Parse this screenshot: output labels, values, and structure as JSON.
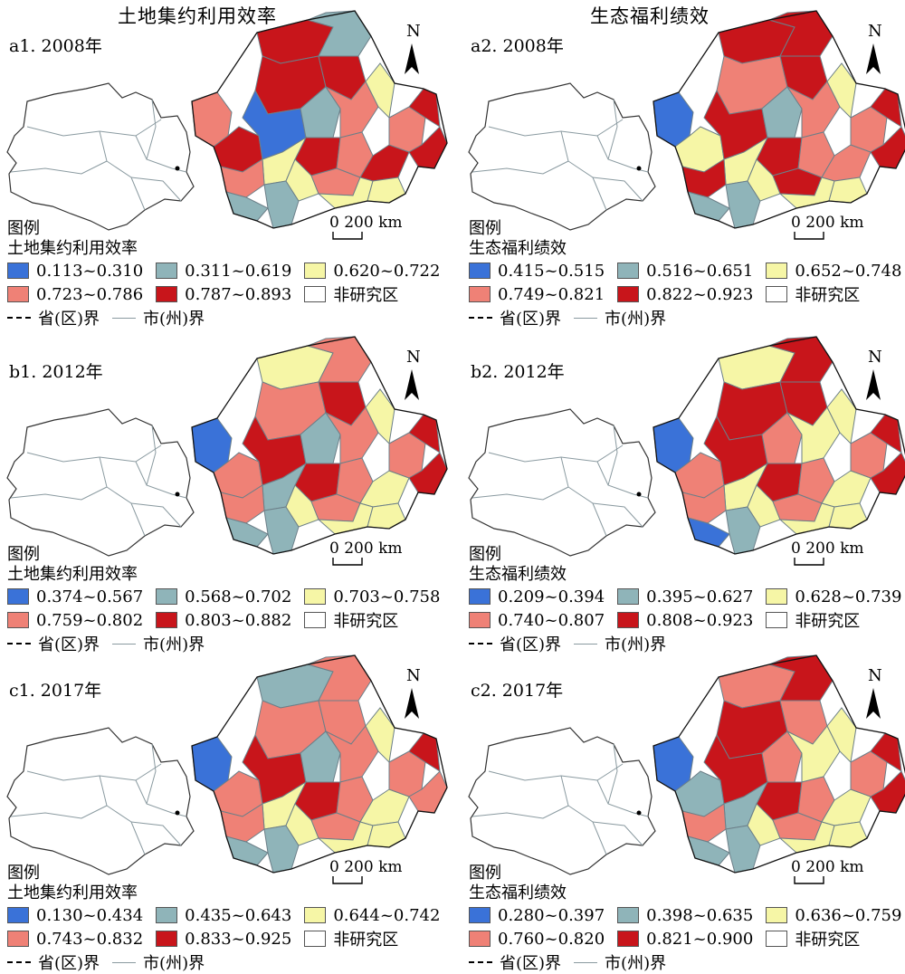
{
  "columns": {
    "left": "土地集约利用效率",
    "right": "生态福利绩效"
  },
  "colors": {
    "c1": "#3a72d8",
    "c2": "#8fb4b9",
    "c3": "#f6f6a6",
    "c4": "#ef8176",
    "c5": "#c8151b",
    "c6": "#ffffff"
  },
  "common": {
    "north": "N",
    "scale": "0  200 km",
    "legend_title": "图例",
    "non_study": "非研究区",
    "province_border": "省(区)界",
    "city_border": "市(州)界"
  },
  "panels": [
    {
      "title": "a1. 2008年",
      "indicator": "土地集约利用效率",
      "classes": [
        "0.113~0.310",
        "0.311~0.619",
        "0.620~0.722",
        "0.723~0.786",
        "0.787~0.893"
      ]
    },
    {
      "title": "a2. 2008年",
      "indicator": "生态福利绩效",
      "classes": [
        "0.415~0.515",
        "0.516~0.651",
        "0.652~0.748",
        "0.749~0.821",
        "0.822~0.923"
      ]
    },
    {
      "title": "b1. 2012年",
      "indicator": "土地集约利用效率",
      "classes": [
        "0.374~0.567",
        "0.568~0.702",
        "0.703~0.758",
        "0.759~0.802",
        "0.803~0.882"
      ]
    },
    {
      "title": "b2. 2012年",
      "indicator": "生态福利绩效",
      "classes": [
        "0.209~0.394",
        "0.395~0.627",
        "0.628~0.739",
        "0.740~0.807",
        "0.808~0.923"
      ]
    },
    {
      "title": "c1. 2017年",
      "indicator": "土地集约利用效率",
      "classes": [
        "0.130~0.434",
        "0.435~0.643",
        "0.644~0.742",
        "0.743~0.832",
        "0.833~0.925"
      ]
    },
    {
      "title": "c2. 2017年",
      "indicator": "生态福利绩效",
      "classes": [
        "0.280~0.397",
        "0.398~0.635",
        "0.636~0.759",
        "0.760~0.820",
        "0.821~0.900"
      ]
    }
  ]
}
